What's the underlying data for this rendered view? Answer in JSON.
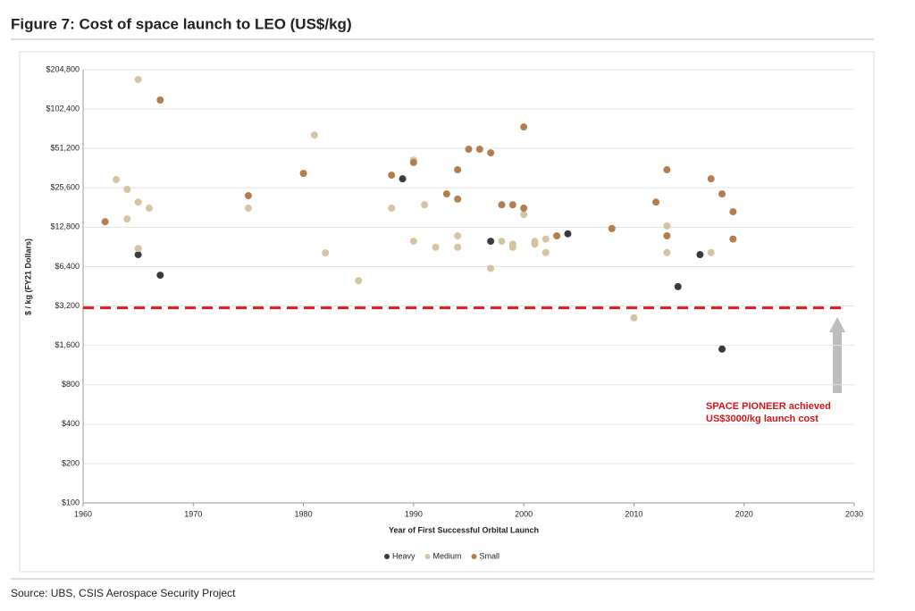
{
  "chart_data": {
    "type": "scatter",
    "title": "Figure 7: Cost of space launch to LEO (US$/kg)",
    "xlabel": "Year of First Successful Orbital Launch",
    "ylabel": "$ / kg (FY21 Dollars)",
    "log_y": true,
    "grid": true,
    "legend": "bottom",
    "xlim": [
      1960,
      2030
    ],
    "xticks": [
      1960,
      1970,
      1980,
      1990,
      2000,
      2010,
      2020,
      2030
    ],
    "ylim": [
      100,
      204800
    ],
    "yticks": [
      {
        "value": 100,
        "label": "$100"
      },
      {
        "value": 200,
        "label": "$200"
      },
      {
        "value": 400,
        "label": "$400"
      },
      {
        "value": 800,
        "label": "$800"
      },
      {
        "value": 1600,
        "label": "$1,600"
      },
      {
        "value": 3200,
        "label": "$3,200"
      },
      {
        "value": 6400,
        "label": "$6,400"
      },
      {
        "value": 12800,
        "label": "$12,800"
      },
      {
        "value": 25600,
        "label": "$25,600"
      },
      {
        "value": 51200,
        "label": "$51,200"
      },
      {
        "value": 102400,
        "label": "$102,400"
      },
      {
        "value": 204800,
        "label": "$204,800"
      }
    ],
    "series": [
      {
        "name": "Heavy",
        "color": "#3b3b3b",
        "x": [
          1965,
          1967,
          1989,
          1997,
          2004,
          2014,
          2016,
          2018
        ],
        "values": [
          7900,
          5500,
          30000,
          10000,
          11400,
          4500,
          7900,
          1500
        ]
      },
      {
        "name": "Medium",
        "color": "#d6c39f",
        "x": [
          1965,
          1963,
          1964,
          1965,
          1966,
          1964,
          1965,
          1975,
          1981,
          1982,
          1985,
          1988,
          1990,
          1990,
          1991,
          1992,
          1994,
          1994,
          1997,
          1998,
          1999,
          1999,
          2000,
          2001,
          2001,
          2002,
          2002,
          2010,
          2013,
          2013,
          2017
        ],
        "values": [
          172000,
          29600,
          24900,
          19900,
          17900,
          14800,
          8800,
          17900,
          64800,
          8150,
          5000,
          17900,
          41800,
          10000,
          19000,
          9000,
          11000,
          9000,
          6200,
          10000,
          9500,
          9000,
          16000,
          10000,
          9500,
          10400,
          8200,
          2600,
          13100,
          8200,
          8200
        ]
      },
      {
        "name": "Small",
        "color": "#b47d4e",
        "x": [
          1962,
          1967,
          1975,
          1980,
          1988,
          1990,
          1993,
          1994,
          1994,
          1995,
          1996,
          1997,
          1998,
          1999,
          2000,
          2000,
          2003,
          2008,
          2012,
          2013,
          2013,
          2017,
          2018,
          2019,
          2019
        ],
        "values": [
          14100,
          120000,
          22300,
          33000,
          32000,
          40000,
          23000,
          35200,
          21000,
          50500,
          50500,
          47400,
          19000,
          19000,
          17900,
          74700,
          11000,
          12500,
          19900,
          35200,
          11000,
          30000,
          23000,
          16800,
          10400
        ]
      }
    ],
    "reference_line": {
      "value": 3100,
      "color": "#e0191e"
    },
    "annotation": [
      "SPACE PIONEER achieved",
      "US$3000/kg launch cost"
    ],
    "annotation_color": "#d0161c",
    "source": "Source: UBS, CSIS Aerospace Security Project"
  }
}
